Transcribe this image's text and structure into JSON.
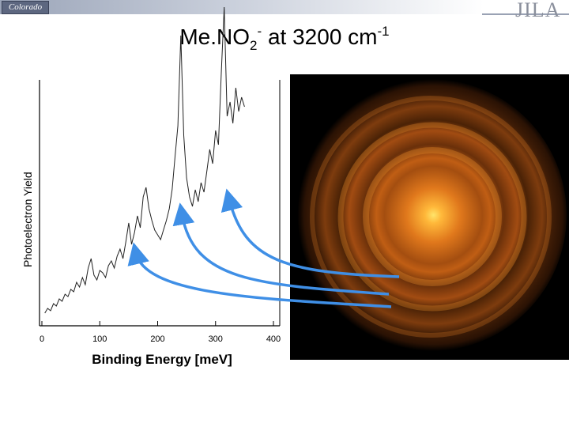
{
  "header": {
    "left_logo": "Colorado",
    "right_logo": "JILA"
  },
  "slide": {
    "title": {
      "base": "Me.NO",
      "sub": "2",
      "sup": "-",
      "mid": " at 3200 cm",
      "exp": "-1"
    }
  },
  "colors": {
    "arrow": "#3f8fe6",
    "image_glow": "#ffd24a",
    "trace": "#222222"
  },
  "chart_data": {
    "type": "line",
    "xlabel": "Binding Energy [meV]",
    "ylabel": "Photoelectron Yield",
    "xlim": [
      0,
      400
    ],
    "xticks": [
      0,
      100,
      200,
      300,
      400
    ],
    "grid": false,
    "series": [
      {
        "x": [
          5,
          10,
          15,
          20,
          25,
          30,
          35,
          40,
          45,
          50,
          55,
          60,
          65,
          70,
          75,
          80,
          85,
          90,
          95,
          100,
          105,
          110,
          115,
          120,
          125,
          130,
          135,
          140,
          145,
          150,
          155,
          160,
          165,
          170,
          175,
          180,
          185,
          190,
          195,
          200,
          205,
          210,
          215,
          220,
          225,
          230,
          235,
          240,
          245,
          250,
          255,
          260,
          265,
          270,
          275,
          280,
          285,
          290,
          295,
          300,
          305,
          310,
          315,
          320,
          325,
          330,
          335,
          340,
          345,
          350
        ],
        "y": [
          0.03,
          0.05,
          0.04,
          0.07,
          0.06,
          0.09,
          0.08,
          0.11,
          0.1,
          0.13,
          0.12,
          0.16,
          0.14,
          0.18,
          0.15,
          0.22,
          0.26,
          0.19,
          0.17,
          0.21,
          0.2,
          0.18,
          0.23,
          0.25,
          0.22,
          0.27,
          0.3,
          0.26,
          0.33,
          0.41,
          0.32,
          0.37,
          0.44,
          0.39,
          0.52,
          0.56,
          0.47,
          0.42,
          0.38,
          0.36,
          0.34,
          0.38,
          0.42,
          0.47,
          0.55,
          0.69,
          0.82,
          1.2,
          0.78,
          0.6,
          0.52,
          0.48,
          0.55,
          0.5,
          0.58,
          0.54,
          0.63,
          0.72,
          0.66,
          0.8,
          0.74,
          1.05,
          1.32,
          0.86,
          0.92,
          0.83,
          0.98,
          0.88,
          0.94,
          0.9
        ]
      }
    ]
  }
}
